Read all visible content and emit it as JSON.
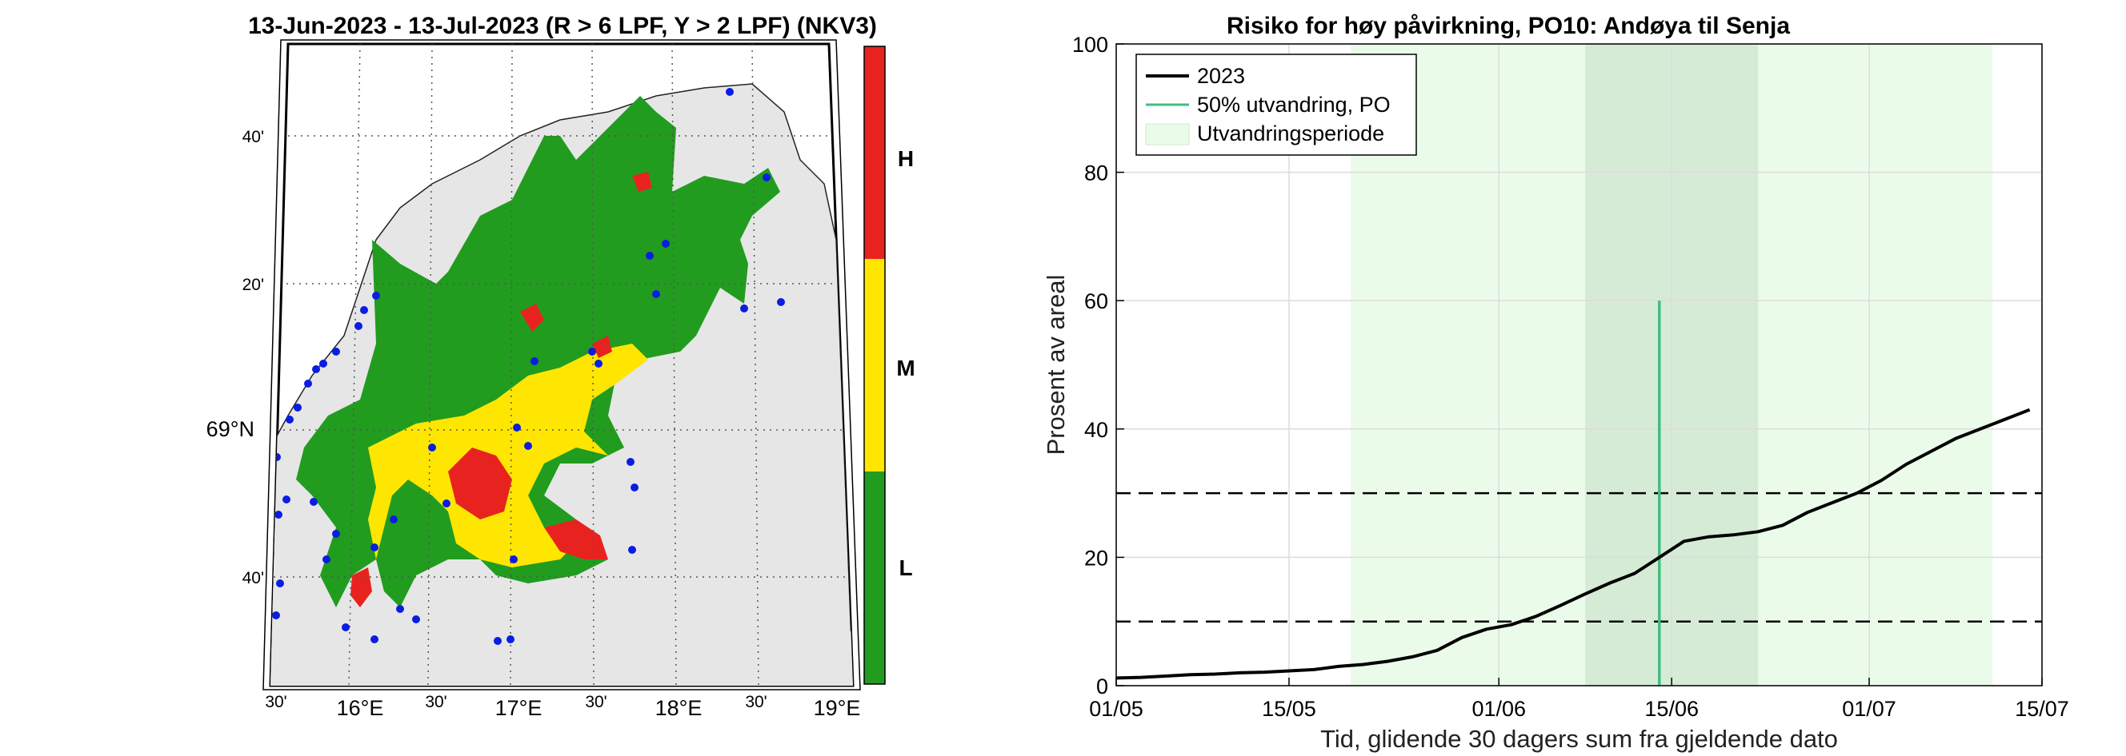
{
  "map_panel": {
    "title": "13-Jun-2023  - 13-Jul-2023  (R > 6 LPF, Y > 2 LPF) (NKV3)",
    "lat_labels": [
      "40'",
      "20'",
      "69°N",
      "40'"
    ],
    "lon_labels": [
      "30'",
      "16°E",
      "30'",
      "17°E",
      "30'",
      "18°E",
      "30'",
      "19°E"
    ],
    "colorbar": {
      "labels": [
        "H",
        "M",
        "L"
      ],
      "colors": [
        "#e8231f",
        "#ffe600",
        "#219c1f"
      ]
    },
    "colors": {
      "land": "#e6e6e6",
      "green": "#219c1f",
      "yellow": "#ffe600",
      "red": "#e8231f",
      "site_dot": "#0a1ee0",
      "grid": "#555555"
    }
  },
  "chart_data": {
    "type": "line",
    "title": "Risiko for høy påvirkning, PO10: Andøya til Senja",
    "xlabel": "Tid, glidende 30 dagers sum fra gjeldende dato",
    "ylabel": "Prosent av areal",
    "x_tick_labels": [
      "01/05",
      "15/05",
      "01/06",
      "15/06",
      "01/07",
      "15/07"
    ],
    "x_tick_dates": [
      "2023-05-01",
      "2023-05-15",
      "2023-06-01",
      "2023-06-15",
      "2023-07-01",
      "2023-07-15"
    ],
    "xlim": [
      "2023-05-01",
      "2023-07-15"
    ],
    "ylim": [
      0,
      100
    ],
    "y_ticks": [
      0,
      20,
      40,
      60,
      80,
      100
    ],
    "grid": true,
    "legend_position": "top-left",
    "legend": [
      "2023",
      "50% utvandring, PO",
      "Utvandringsperiode"
    ],
    "series": [
      {
        "name": "2023",
        "color": "#000000",
        "dates": [
          "2023-05-01",
          "2023-05-03",
          "2023-05-05",
          "2023-05-07",
          "2023-05-09",
          "2023-05-11",
          "2023-05-13",
          "2023-05-15",
          "2023-05-17",
          "2023-05-19",
          "2023-05-21",
          "2023-05-23",
          "2023-05-25",
          "2023-05-27",
          "2023-05-29",
          "2023-05-31",
          "2023-06-02",
          "2023-06-04",
          "2023-06-06",
          "2023-06-08",
          "2023-06-10",
          "2023-06-12",
          "2023-06-14",
          "2023-06-16",
          "2023-06-18",
          "2023-06-20",
          "2023-06-22",
          "2023-06-24",
          "2023-06-26",
          "2023-06-28",
          "2023-06-30",
          "2023-07-02",
          "2023-07-04",
          "2023-07-06",
          "2023-07-08",
          "2023-07-10",
          "2023-07-12",
          "2023-07-14"
        ],
        "values": [
          1.2,
          1.3,
          1.5,
          1.7,
          1.8,
          2.0,
          2.1,
          2.3,
          2.5,
          3.0,
          3.3,
          3.8,
          4.5,
          5.5,
          7.5,
          8.8,
          9.5,
          10.8,
          12.5,
          14.3,
          16.0,
          17.5,
          20.0,
          22.5,
          23.2,
          23.5,
          24.0,
          25.0,
          27.0,
          28.5,
          30.0,
          32.0,
          34.5,
          36.5,
          38.5,
          40.0,
          41.5,
          43.0
        ]
      }
    ],
    "reference_lines": [
      {
        "y": 10,
        "style": "dashed",
        "color": "#000000"
      },
      {
        "y": 30,
        "style": "dashed",
        "color": "#000000"
      }
    ],
    "markers": [
      {
        "name": "50% utvandring, PO",
        "date": "2023-06-14",
        "y_from": 0,
        "y_to": 60,
        "color": "#3fbf7f"
      }
    ],
    "shaded_periods": [
      {
        "name": "Utvandringsperiode",
        "from": "2023-05-20",
        "to": "2023-07-11",
        "color": "#ebfbea"
      },
      {
        "name": "Utvandringsperiode",
        "from": "2023-06-08",
        "to": "2023-06-22",
        "color": "#d6ebd5"
      }
    ]
  }
}
